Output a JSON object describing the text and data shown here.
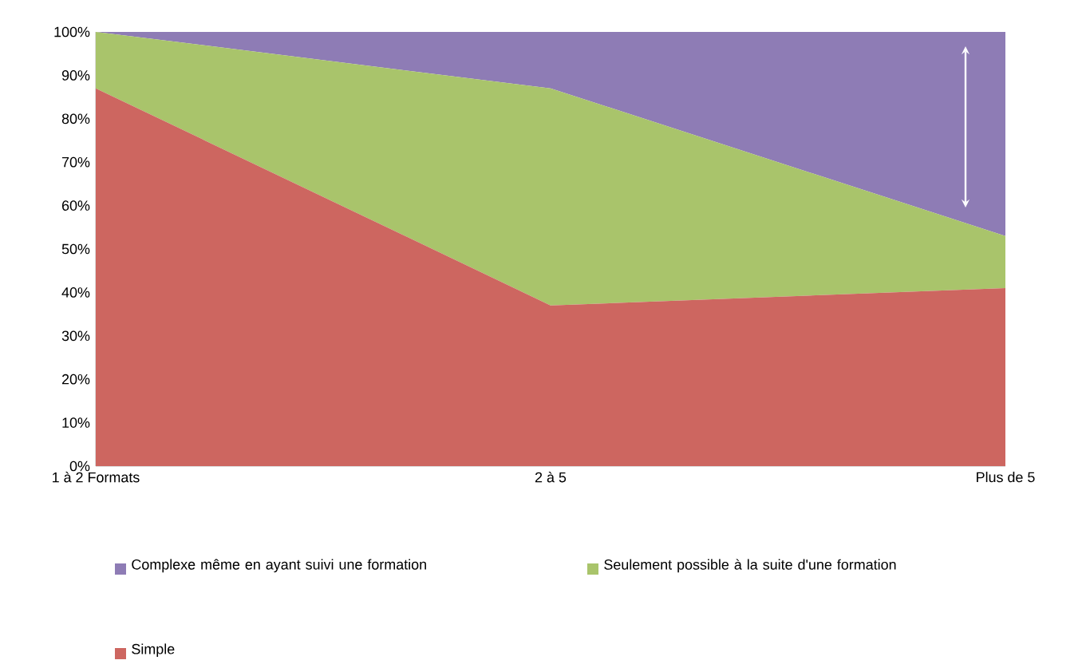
{
  "chart_data": {
    "type": "area",
    "stacked": true,
    "categories": [
      "1 à 2 Formats",
      "2 à 5",
      "Plus de 5"
    ],
    "series": [
      {
        "name": "Simple",
        "color": "#cd6660",
        "values": [
          87,
          37,
          41
        ]
      },
      {
        "name": "Seulement possible à la suite d'une formation",
        "color": "#a9c46b",
        "values": [
          13,
          50,
          12
        ]
      },
      {
        "name": "Complexe même en ayant suivi une formation",
        "color": "#8e7cb5",
        "values": [
          0,
          13,
          47
        ]
      }
    ],
    "ylim": [
      0,
      100
    ],
    "yticks": [
      {
        "value": 0,
        "label": "0%"
      },
      {
        "value": 10,
        "label": "10%"
      },
      {
        "value": 20,
        "label": "20%"
      },
      {
        "value": 30,
        "label": "30%"
      },
      {
        "value": 40,
        "label": "40%"
      },
      {
        "value": 50,
        "label": "50%"
      },
      {
        "value": 60,
        "label": "60%"
      },
      {
        "value": 70,
        "label": "70%"
      },
      {
        "value": 80,
        "label": "80%"
      },
      {
        "value": 90,
        "label": "90%"
      },
      {
        "value": 100,
        "label": "100%"
      }
    ],
    "legend": "bottom"
  }
}
